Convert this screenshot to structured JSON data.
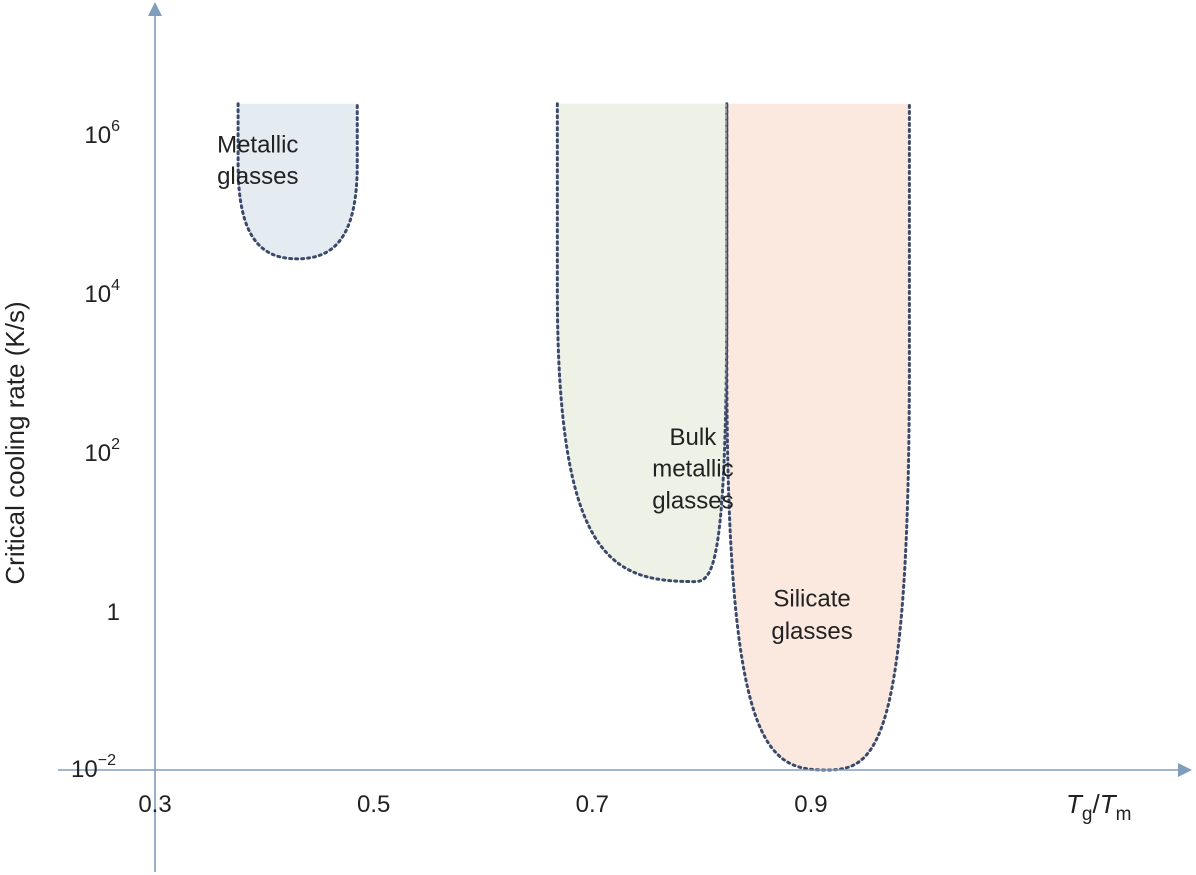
{
  "chart_data": {
    "type": "area",
    "title": "",
    "xlabel": {
      "main1": "T",
      "sub1": "g",
      "slash": "/",
      "main2": "T",
      "sub2": "m"
    },
    "ylabel": "Critical cooling rate (K/s)",
    "x_ticks": [
      {
        "value": 0.3,
        "label": "0.3"
      },
      {
        "value": 0.5,
        "label": "0.5"
      },
      {
        "value": 0.7,
        "label": "0.7"
      },
      {
        "value": 0.9,
        "label": "0.9"
      }
    ],
    "y_ticks": [
      {
        "value_log10": 6,
        "base": "10",
        "exp": "6"
      },
      {
        "value_log10": 4,
        "base": "10",
        "exp": "4"
      },
      {
        "value_log10": 2,
        "base": "10",
        "exp": "2"
      },
      {
        "value_log10": 0,
        "base": "1",
        "exp": ""
      },
      {
        "value_log10": -2,
        "base": "10",
        "exp": "−2"
      }
    ],
    "y_scale": "log",
    "xlim": [
      0.3,
      0.95
    ],
    "ylim_log10": [
      -2,
      6.4
    ],
    "regions": [
      {
        "name": "metallic-glasses",
        "lines": [
          "Metallic",
          "glasses"
        ],
        "label_at": {
          "x": 0.394,
          "y_log10": [
            5.87,
            5.47
          ]
        },
        "fill": "#e4ebf1",
        "stroke": "#3b4a6b",
        "x_left": 0.376,
        "x_right": 0.485,
        "x_min": 0.43,
        "min_log10": 4.43,
        "top_log10": 6.38
      },
      {
        "name": "bulk-metallic-glasses",
        "lines": [
          "Bulk",
          "metallic",
          "glasses"
        ],
        "label_at": {
          "x": 0.792,
          "y_log10": [
            2.19,
            1.79,
            1.39
          ]
        },
        "fill": "#eef1e6",
        "stroke": "#3b4a6b",
        "x_left": 0.668,
        "x_right": 0.823,
        "x_min": 0.794,
        "min_log10": 0.37,
        "top_log10": 6.38
      },
      {
        "name": "silicate-glasses",
        "lines": [
          "Silicate",
          "glasses"
        ],
        "label_at": {
          "x": 0.901,
          "y_log10": [
            0.16,
            -0.25
          ]
        },
        "fill": "#fbe9df",
        "stroke": "#3b4a6b",
        "x_left": 0.823,
        "x_right": 0.99,
        "x_min": 0.914,
        "min_log10": -2.0,
        "top_log10": 6.38
      }
    ]
  }
}
